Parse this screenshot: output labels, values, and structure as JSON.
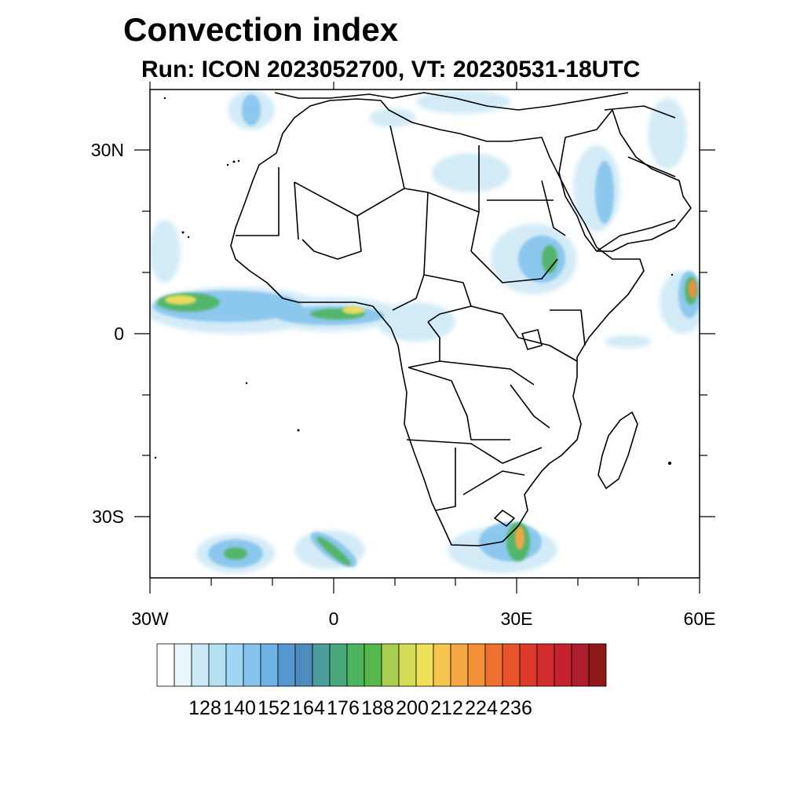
{
  "title": "Convection index",
  "subtitle": "Run: ICON 2023052700,  VT: 20230531-18UTC",
  "axes": {
    "y_labels": [
      "30N",
      "0",
      "30S"
    ],
    "x_labels": [
      "30W",
      "0",
      "30E",
      "60E"
    ],
    "lat_range": [
      -40,
      40
    ],
    "lon_range": [
      -30,
      60
    ]
  },
  "colorbar": {
    "labels": [
      "128",
      "140",
      "152",
      "164",
      "176",
      "188",
      "200",
      "212",
      "224",
      "236"
    ],
    "colors": [
      "#ffffff",
      "#e8f5fb",
      "#cbe8f6",
      "#b4e0f4",
      "#9fd6f3",
      "#85c4ec",
      "#6fb2e4",
      "#5597cf",
      "#4e8cbd",
      "#4c9d9c",
      "#4aa97c",
      "#4db45e",
      "#56b84a",
      "#a8cf52",
      "#d3dd58",
      "#f0e05a",
      "#f7c64f",
      "#f6a844",
      "#f39039",
      "#ee7030",
      "#e8552b",
      "#de3a2b",
      "#d42b2f",
      "#c3222e",
      "#ad1d2b",
      "#8e1818"
    ]
  },
  "colors": {
    "land_line": "#000000",
    "frame": "#000000"
  }
}
